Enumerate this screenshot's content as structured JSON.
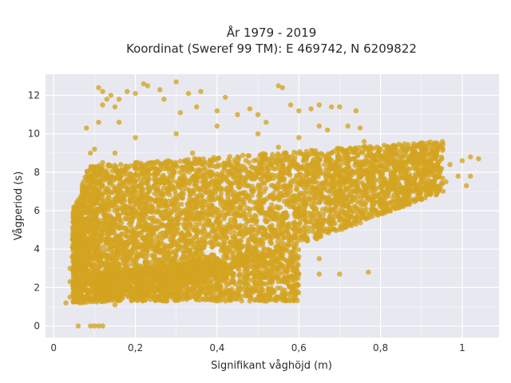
{
  "chart_data": {
    "type": "scatter",
    "title": "År 1979 - 2019",
    "subtitle": "Koordinat (Sweref 99 TM): E 469742, N 6209822",
    "xlabel": "Signifikant våghöjd (m)",
    "ylabel": "Vågperiod (s)",
    "xlim": [
      -0.02,
      1.09
    ],
    "ylim": [
      -0.6,
      13.1
    ],
    "x_ticks": [
      0,
      0.2,
      0.4,
      0.6,
      0.8,
      1
    ],
    "x_tick_labels": [
      "0",
      "0,2",
      "0,4",
      "0,6",
      "0,8",
      "1"
    ],
    "y_ticks": [
      0,
      2,
      4,
      6,
      8,
      10,
      12
    ],
    "y_tick_labels": [
      "0",
      "2",
      "4",
      "6",
      "8",
      "10",
      "12"
    ],
    "grid": true,
    "marker_color": "#d4a420",
    "background_color": "#e8e8f0",
    "series": [
      {
        "values": [
          [
            0.03,
            1.2
          ],
          [
            0.04,
            1.5
          ],
          [
            0.05,
            2.0
          ],
          [
            0.05,
            2.8
          ],
          [
            0.06,
            1.3
          ],
          [
            0.06,
            3.5
          ],
          [
            0.07,
            4.2
          ],
          [
            0.07,
            1.8
          ],
          [
            0.08,
            5.0
          ],
          [
            0.08,
            2.5
          ],
          [
            0.09,
            6.1
          ],
          [
            0.09,
            1.4
          ],
          [
            0.06,
            0.0
          ],
          [
            0.09,
            0.0
          ],
          [
            0.1,
            0.0
          ],
          [
            0.11,
            0.0
          ],
          [
            0.12,
            0.0
          ],
          [
            0.07,
            7.2
          ],
          [
            0.1,
            8.0
          ],
          [
            0.08,
            10.3
          ],
          [
            0.1,
            9.2
          ],
          [
            0.11,
            10.6
          ],
          [
            0.12,
            11.5
          ],
          [
            0.11,
            12.4
          ],
          [
            0.12,
            12.2
          ],
          [
            0.13,
            11.8
          ],
          [
            0.15,
            11.4
          ],
          [
            0.16,
            11.8
          ],
          [
            0.18,
            12.2
          ],
          [
            0.2,
            12.1
          ],
          [
            0.22,
            12.6
          ],
          [
            0.23,
            12.5
          ],
          [
            0.26,
            12.3
          ],
          [
            0.3,
            12.7
          ],
          [
            0.33,
            12.1
          ],
          [
            0.35,
            11.4
          ],
          [
            0.4,
            11.2
          ],
          [
            0.45,
            11.0
          ],
          [
            0.5,
            11.0
          ],
          [
            0.55,
            12.5
          ],
          [
            0.56,
            12.4
          ],
          [
            0.6,
            11.2
          ],
          [
            0.63,
            11.3
          ],
          [
            0.65,
            11.5
          ],
          [
            0.68,
            11.4
          ],
          [
            0.7,
            11.4
          ],
          [
            0.75,
            10.3
          ],
          [
            0.72,
            10.4
          ],
          [
            0.58,
            11.5
          ],
          [
            0.78,
            8.9
          ],
          [
            0.8,
            9.2
          ],
          [
            0.83,
            9.0
          ],
          [
            0.85,
            8.5
          ],
          [
            0.88,
            8.4
          ],
          [
            0.9,
            8.2
          ],
          [
            0.93,
            8.8
          ],
          [
            0.95,
            8.7
          ],
          [
            0.97,
            8.4
          ],
          [
            1.0,
            8.6
          ],
          [
            1.02,
            8.8
          ],
          [
            1.04,
            8.7
          ],
          [
            1.02,
            7.8
          ],
          [
            1.01,
            7.3
          ],
          [
            0.99,
            7.8
          ],
          [
            0.96,
            7.5
          ],
          [
            0.92,
            7.3
          ],
          [
            0.88,
            7.0
          ],
          [
            0.86,
            6.5
          ],
          [
            0.84,
            6.2
          ],
          [
            0.8,
            6.4
          ],
          [
            0.7,
            6.0
          ],
          [
            0.6,
            5.3
          ],
          [
            0.5,
            4.5
          ],
          [
            0.4,
            3.5
          ],
          [
            0.3,
            2.5
          ],
          [
            0.2,
            1.5
          ],
          [
            0.15,
            1.1
          ],
          [
            0.25,
            1.5
          ],
          [
            0.35,
            1.7
          ],
          [
            0.45,
            1.9
          ],
          [
            0.55,
            2.3
          ],
          [
            0.6,
            2.7
          ],
          [
            0.65,
            2.7
          ],
          [
            0.7,
            2.7
          ],
          [
            0.77,
            2.8
          ],
          [
            0.65,
            3.5
          ],
          [
            0.5,
            2.8
          ],
          [
            0.42,
            2.6
          ],
          [
            0.52,
            5.5
          ],
          [
            0.6,
            6.2
          ],
          [
            0.7,
            7.3
          ],
          [
            0.8,
            7.8
          ],
          [
            0.9,
            7.7
          ],
          [
            0.45,
            8.8
          ],
          [
            0.55,
            9.3
          ],
          [
            0.6,
            9.8
          ],
          [
            0.65,
            10.4
          ],
          [
            0.5,
            10.0
          ],
          [
            0.4,
            10.4
          ],
          [
            0.3,
            10.0
          ],
          [
            0.2,
            9.8
          ],
          [
            0.15,
            9.0
          ],
          [
            0.25,
            7.5
          ],
          [
            0.35,
            6.5
          ],
          [
            0.3,
            5.0
          ],
          [
            0.2,
            4.0
          ],
          [
            0.15,
            3.0
          ],
          [
            0.2,
            6.0
          ],
          [
            0.4,
            7.5
          ],
          [
            0.5,
            8.0
          ],
          [
            0.62,
            8.4
          ],
          [
            0.72,
            8.2
          ],
          [
            0.76,
            9.6
          ],
          [
            0.68,
            9.0
          ],
          [
            0.58,
            7.0
          ],
          [
            0.48,
            6.5
          ],
          [
            0.38,
            5.5
          ],
          [
            0.28,
            3.8
          ],
          [
            0.18,
            2.2
          ],
          [
            0.13,
            1.6
          ],
          [
            0.1,
            2.8
          ],
          [
            0.1,
            4.8
          ],
          [
            0.1,
            6.8
          ],
          [
            0.12,
            8.5
          ],
          [
            0.16,
            7.0
          ],
          [
            0.24,
            8.5
          ],
          [
            0.34,
            9.0
          ],
          [
            0.44,
            4.2
          ],
          [
            0.54,
            4.8
          ],
          [
            0.64,
            4.6
          ],
          [
            0.74,
            5.3
          ],
          [
            0.82,
            7.0
          ],
          [
            0.94,
            7.2
          ],
          [
            0.31,
            11.1
          ],
          [
            0.27,
            11.8
          ],
          [
            0.36,
            12.2
          ],
          [
            0.42,
            11.9
          ],
          [
            0.48,
            11.3
          ],
          [
            0.52,
            10.6
          ],
          [
            0.74,
            11.2
          ],
          [
            0.67,
            10.2
          ],
          [
            0.16,
            10.6
          ],
          [
            0.14,
            12.0
          ],
          [
            0.09,
            9.0
          ],
          [
            0.06,
            5.8
          ],
          [
            0.04,
            3.0
          ],
          [
            0.04,
            2.3
          ]
        ]
      }
    ]
  }
}
